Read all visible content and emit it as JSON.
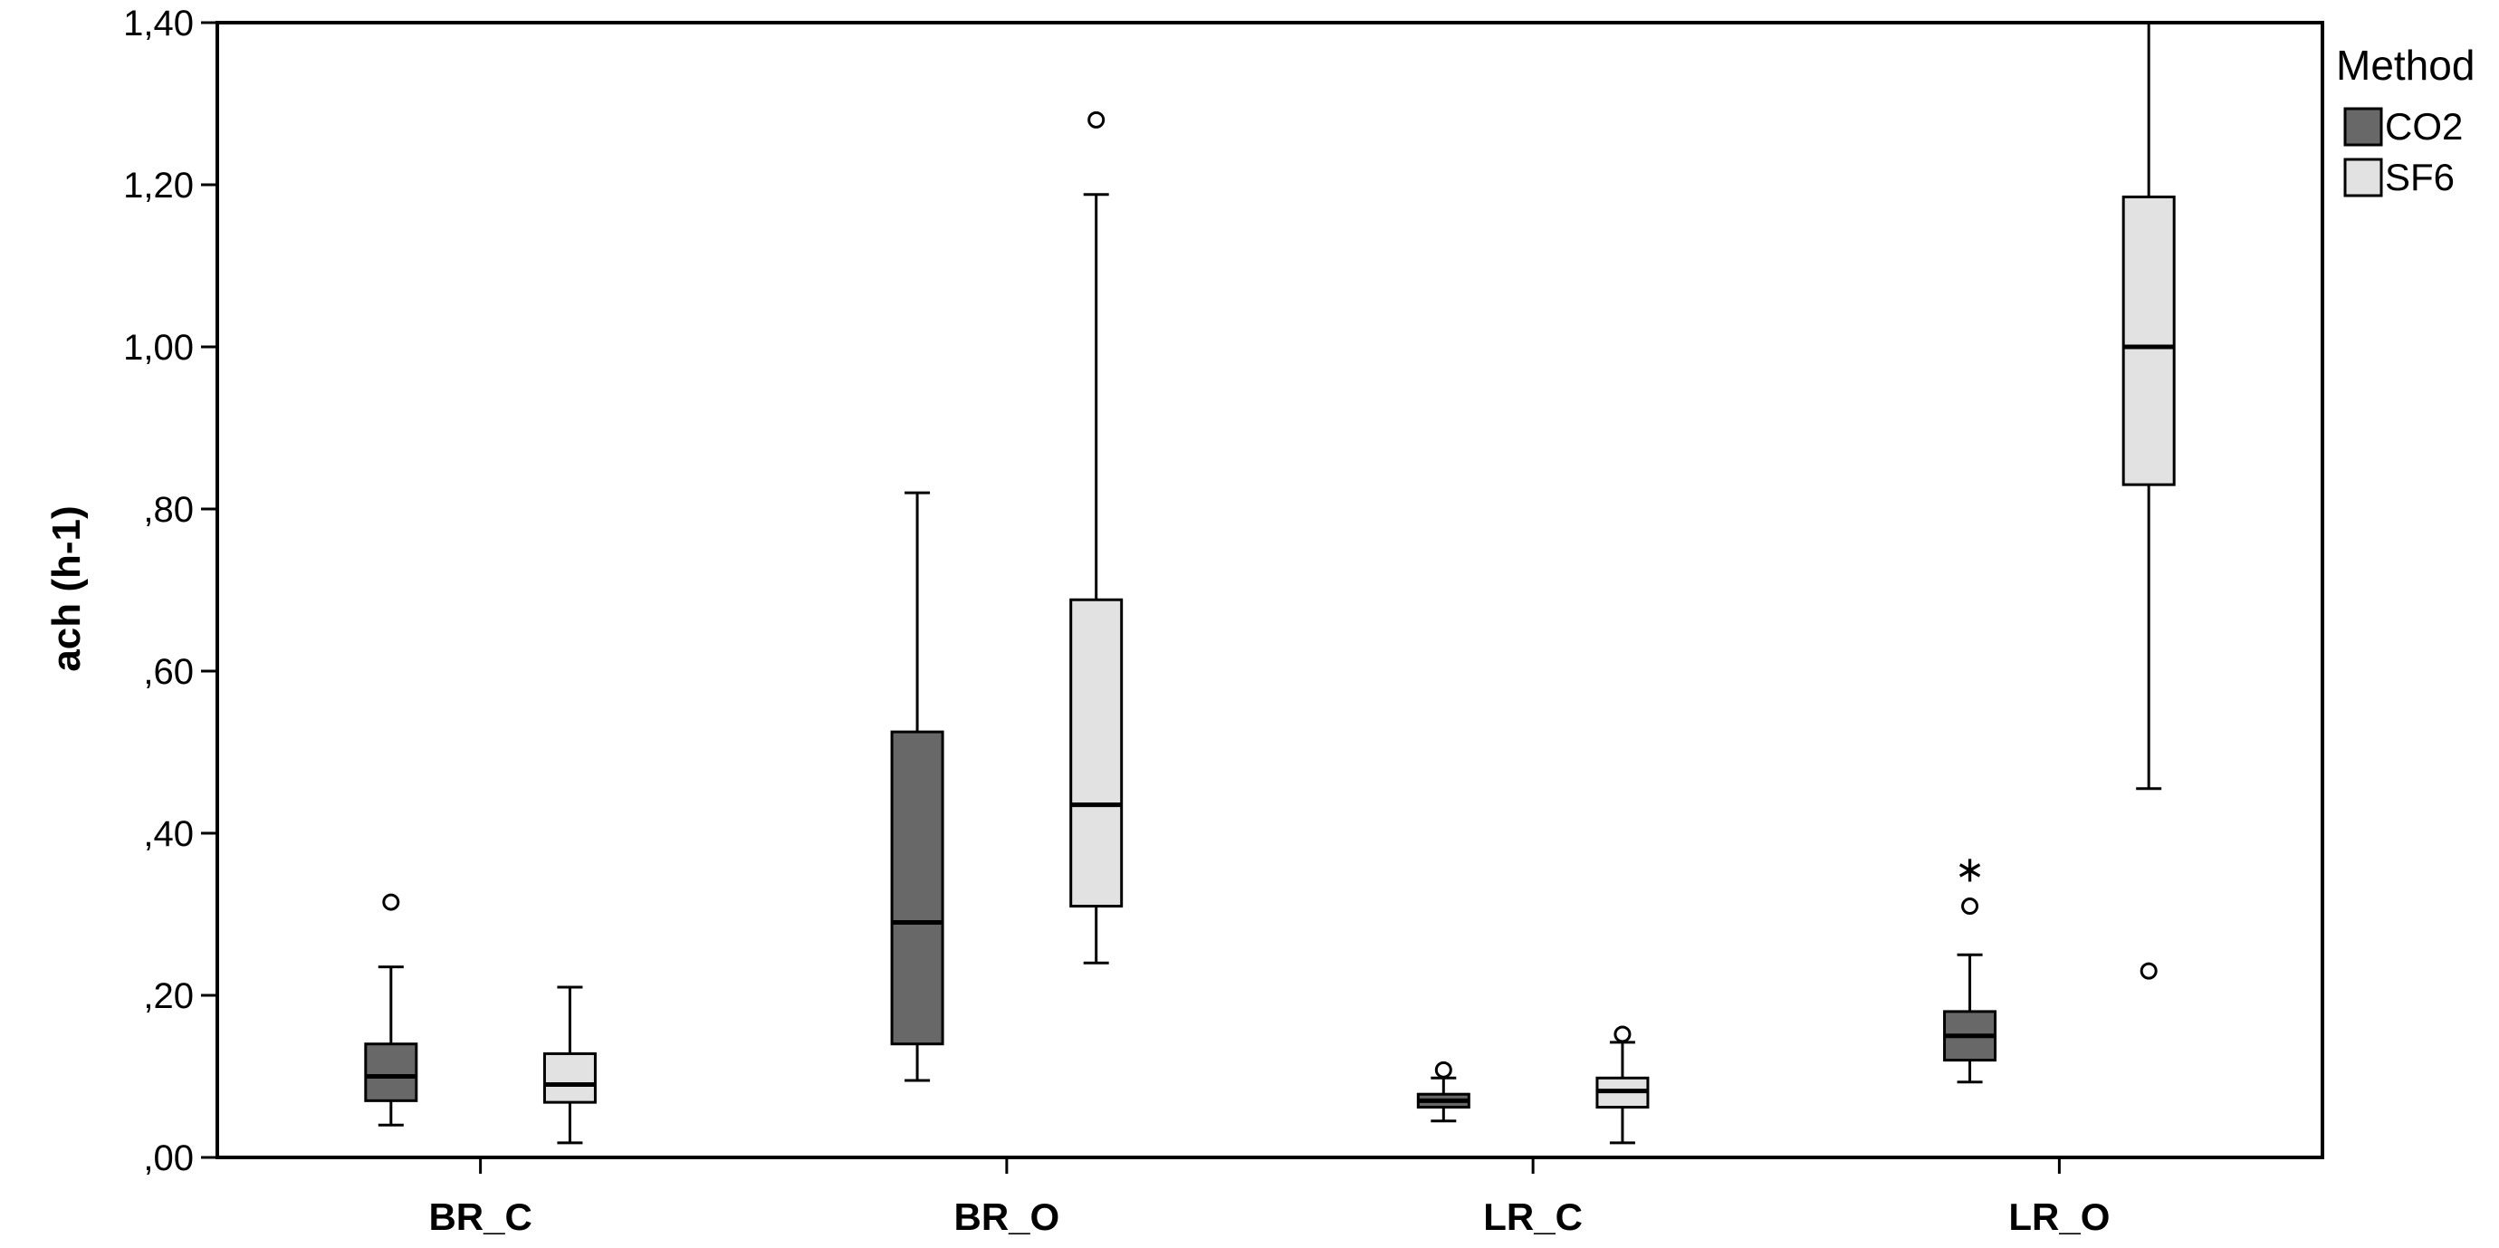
{
  "chart_data": {
    "type": "boxplot",
    "ylabel": "ach (h-1)",
    "xlabel": "",
    "ylim": [
      0.0,
      1.4
    ],
    "yticks": [
      0.0,
      0.2,
      0.4,
      0.6,
      0.8,
      1.0,
      1.2,
      1.4
    ],
    "ytick_labels": [
      ",00",
      ",20",
      ",40",
      ",60",
      ",80",
      "1,00",
      "1,20",
      "1,40"
    ],
    "categories": [
      "BR_C",
      "BR_O",
      "LR_C",
      "LR_O"
    ],
    "legend": {
      "title": "Method",
      "position": "right",
      "items": [
        {
          "name": "CO2",
          "color": "#686868"
        },
        {
          "name": "SF6",
          "color": "#e2e2e2"
        }
      ]
    },
    "series": [
      {
        "name": "CO2",
        "color": "#686868",
        "boxes": [
          {
            "category": "BR_C",
            "whisker_low": 0.04,
            "q1": 0.07,
            "median": 0.1,
            "q3": 0.14,
            "whisker_high": 0.235,
            "outliers": [
              0.315
            ],
            "extremes": []
          },
          {
            "category": "BR_O",
            "whisker_low": 0.095,
            "q1": 0.14,
            "median": 0.29,
            "q3": 0.525,
            "whisker_high": 0.82,
            "outliers": [],
            "extremes": []
          },
          {
            "category": "LR_C",
            "whisker_low": 0.045,
            "q1": 0.062,
            "median": 0.07,
            "q3": 0.078,
            "whisker_high": 0.098,
            "outliers": [
              0.108
            ],
            "extremes": []
          },
          {
            "category": "LR_O",
            "whisker_low": 0.093,
            "q1": 0.12,
            "median": 0.15,
            "q3": 0.18,
            "whisker_high": 0.25,
            "outliers": [
              0.31
            ],
            "extremes": [
              0.365
            ]
          }
        ]
      },
      {
        "name": "SF6",
        "color": "#e2e2e2",
        "boxes": [
          {
            "category": "BR_C",
            "whisker_low": 0.018,
            "q1": 0.068,
            "median": 0.09,
            "q3": 0.128,
            "whisker_high": 0.21,
            "outliers": [],
            "extremes": []
          },
          {
            "category": "BR_O",
            "whisker_low": 0.24,
            "q1": 0.31,
            "median": 0.435,
            "q3": 0.688,
            "whisker_high": 1.188,
            "outliers": [
              1.28
            ],
            "extremes": []
          },
          {
            "category": "LR_C",
            "whisker_low": 0.018,
            "q1": 0.062,
            "median": 0.082,
            "q3": 0.098,
            "whisker_high": 0.142,
            "outliers": [
              0.152
            ],
            "extremes": []
          },
          {
            "category": "LR_O",
            "whisker_low": 0.455,
            "q1": 0.83,
            "median": 1.0,
            "q3": 1.185,
            "whisker_high": 1.4,
            "outliers": [
              0.23
            ],
            "extremes": []
          }
        ]
      }
    ]
  }
}
